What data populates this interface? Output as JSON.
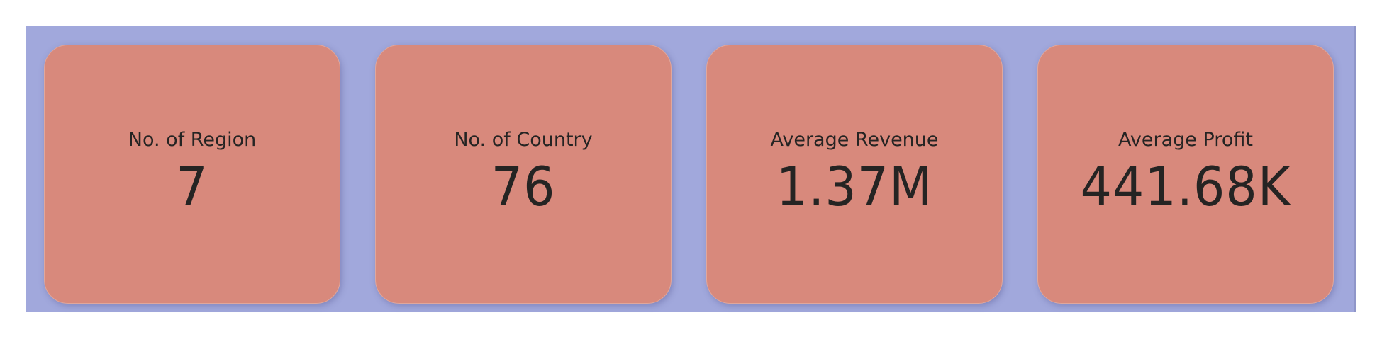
{
  "colors": {
    "panel_background": "#a1a8dc",
    "card_background": "#d8897c",
    "text": "#252423"
  },
  "cards": [
    {
      "label": "No. of Region",
      "value": "7"
    },
    {
      "label": "No. of Country",
      "value": "76"
    },
    {
      "label": "Average Revenue",
      "value": "1.37M"
    },
    {
      "label": "Average Profit",
      "value": "441.68K"
    }
  ]
}
